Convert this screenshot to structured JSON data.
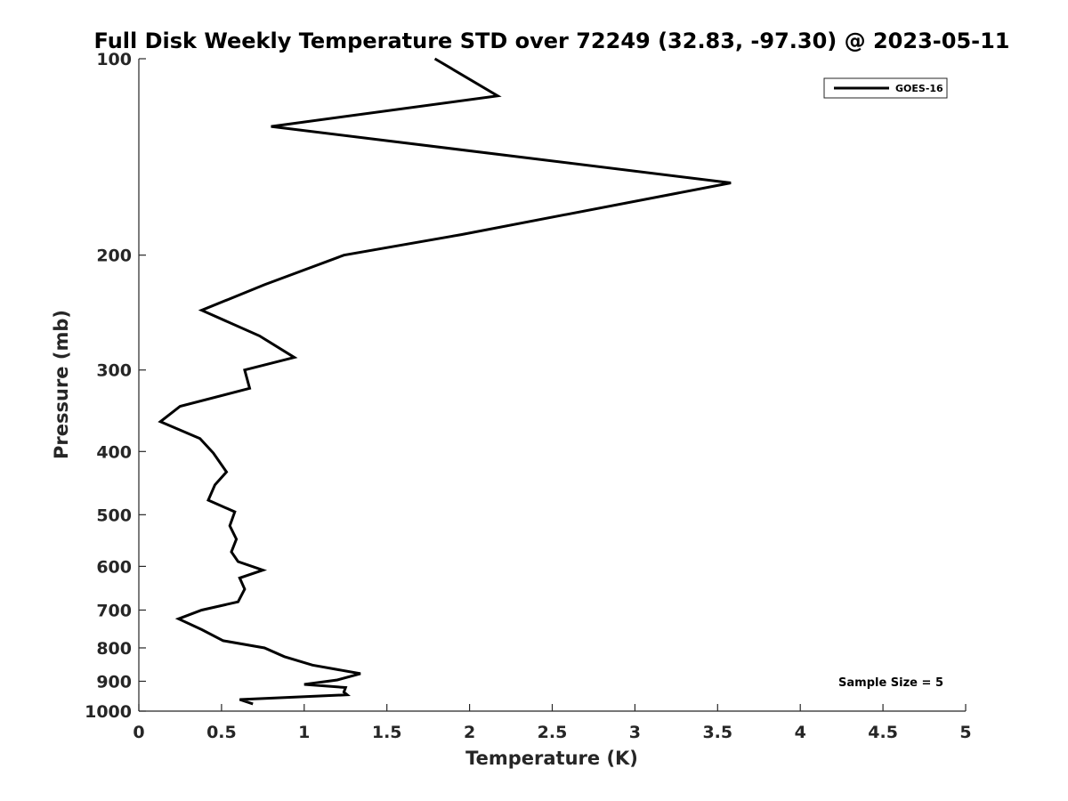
{
  "chart_data": {
    "type": "line",
    "title": "Full Disk Weekly Temperature STD over 72249 (32.83, -97.30) @ 2023-05-11",
    "xlabel": "Temperature (K)",
    "ylabel": "Pressure (mb)",
    "xlim": [
      0,
      5
    ],
    "ylim": [
      1000,
      100
    ],
    "y_scale": "log",
    "x_ticks": [
      0,
      0.5,
      1,
      1.5,
      2,
      2.5,
      3,
      3.5,
      4,
      4.5,
      5
    ],
    "x_tick_labels": [
      "0",
      "0.5",
      "1",
      "1.5",
      "2",
      "2.5",
      "3",
      "3.5",
      "4",
      "4.5",
      "5"
    ],
    "y_ticks": [
      100,
      200,
      300,
      400,
      500,
      600,
      700,
      800,
      900,
      1000
    ],
    "y_tick_labels": [
      "100",
      "200",
      "300",
      "400",
      "500",
      "600",
      "700",
      "800",
      "900",
      "1000"
    ],
    "grid": false,
    "legend_position": "top-right",
    "annotation": "Sample Size = 5",
    "line_color": "#000000",
    "series": [
      {
        "name": "GOES-16",
        "x": [
          1.79,
          2.17,
          0.8,
          3.58,
          1.95,
          1.24,
          0.76,
          0.38,
          0.73,
          0.94,
          0.64,
          0.67,
          0.25,
          0.13,
          0.37,
          0.45,
          0.53,
          0.46,
          0.42,
          0.58,
          0.55,
          0.59,
          0.56,
          0.6,
          0.75,
          0.61,
          0.64,
          0.6,
          0.38,
          0.24,
          0.38,
          0.51,
          0.76,
          0.88,
          1.05,
          1.34,
          1.2,
          1.0,
          1.25,
          1.24,
          1.26,
          0.61,
          0.69
        ],
        "y": [
          100,
          114,
          127,
          155,
          186,
          200,
          222,
          243,
          266,
          287,
          300,
          320,
          341,
          360,
          382,
          402,
          430,
          450,
          475,
          495,
          520,
          545,
          570,
          590,
          608,
          625,
          650,
          680,
          700,
          722,
          750,
          780,
          800,
          825,
          850,
          876,
          896,
          910,
          920,
          935,
          944,
          960,
          975
        ]
      }
    ]
  }
}
